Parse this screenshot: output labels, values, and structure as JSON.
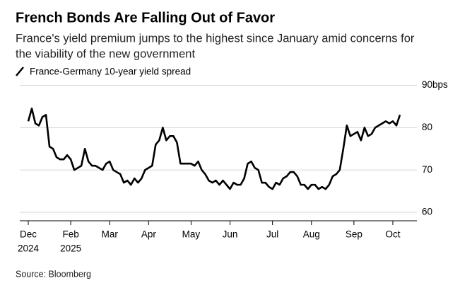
{
  "chart_data": {
    "type": "line",
    "title": "French Bonds Are Falling Out of Favor",
    "subtitle": [
      "France's yield premium jumps to the highest since January amid concerns for",
      "the viability of the new government"
    ],
    "source": "Source: Bloomberg",
    "x": [
      "2024-12",
      "2024-12",
      "2024-12",
      "2024-12",
      "2024-12",
      "2024-12",
      "2025-01",
      "2025-01",
      "2025-01",
      "2025-01",
      "2025-01",
      "2025-01",
      "2025-02",
      "2025-02",
      "2025-02",
      "2025-02",
      "2025-02",
      "2025-02",
      "2025-02",
      "2025-02",
      "2025-02",
      "2025-02",
      "2025-02",
      "2025-03",
      "2025-03",
      "2025-03",
      "2025-03",
      "2025-03",
      "2025-03",
      "2025-03",
      "2025-03",
      "2025-03",
      "2025-03",
      "2025-03",
      "2025-04",
      "2025-04",
      "2025-04",
      "2025-04",
      "2025-04",
      "2025-04",
      "2025-04",
      "2025-04",
      "2025-04",
      "2025-04",
      "2025-04",
      "2025-04",
      "2025-05",
      "2025-05",
      "2025-05",
      "2025-05",
      "2025-05",
      "2025-05",
      "2025-05",
      "2025-05",
      "2025-05",
      "2025-05",
      "2025-05",
      "2025-06",
      "2025-06",
      "2025-06",
      "2025-06",
      "2025-06",
      "2025-06",
      "2025-06",
      "2025-06",
      "2025-06",
      "2025-06",
      "2025-06",
      "2025-06",
      "2025-07",
      "2025-07",
      "2025-07",
      "2025-07",
      "2025-07",
      "2025-07",
      "2025-07",
      "2025-07",
      "2025-07",
      "2025-07",
      "2025-07",
      "2025-08",
      "2025-08",
      "2025-08",
      "2025-08",
      "2025-08",
      "2025-08",
      "2025-08",
      "2025-08",
      "2025-08",
      "2025-08",
      "2025-08",
      "2025-08",
      "2025-09",
      "2025-09",
      "2025-09",
      "2025-09",
      "2025-09",
      "2025-09",
      "2025-09",
      "2025-09",
      "2025-09",
      "2025-09",
      "2025-09",
      "2025-10",
      "2025-10",
      "2025-10"
    ],
    "series": [
      {
        "name": "France-Germany 10-year yield spread",
        "color": "#000000",
        "values": [
          81.5,
          84.5,
          81,
          80.5,
          82.5,
          83,
          75.5,
          75,
          73,
          72.5,
          72.5,
          73.5,
          72.5,
          70,
          70.5,
          71,
          75,
          72,
          71,
          71,
          70.5,
          70,
          71.5,
          72,
          70,
          69.5,
          69,
          67,
          67.5,
          66.5,
          68,
          67,
          68,
          70,
          70.5,
          71,
          76,
          77,
          80,
          77,
          78,
          78,
          76.5,
          71.5,
          71.5,
          71.5,
          71.5,
          71,
          72,
          70,
          69,
          67.5,
          67,
          67.5,
          66.5,
          67.5,
          66.5,
          65.5,
          67,
          66.5,
          66.5,
          68,
          71.5,
          72,
          70.5,
          70,
          67,
          67,
          66,
          65.5,
          67,
          66.5,
          68,
          68.5,
          69.5,
          69.5,
          68.5,
          66.5,
          66.5,
          65.5,
          66.5,
          66.5,
          65.5,
          66,
          65.5,
          66.5,
          68.5,
          69,
          70,
          75,
          80.5,
          78,
          78.5,
          79,
          77,
          80,
          78,
          78.5,
          80,
          80.5,
          81,
          81.5,
          81,
          81.5,
          80.5,
          83
        ]
      }
    ],
    "xticks": [
      {
        "value": "2024-12",
        "label": "Dec",
        "year": "2024"
      },
      {
        "value": "2025-02",
        "label": "Feb",
        "year": "2025"
      },
      {
        "value": "2025-03",
        "label": "Mar"
      },
      {
        "value": "2025-04",
        "label": "Apr"
      },
      {
        "value": "2025-05",
        "label": "May"
      },
      {
        "value": "2025-06",
        "label": "Jun"
      },
      {
        "value": "2025-07",
        "label": "Jul"
      },
      {
        "value": "2025-08",
        "label": "Aug"
      },
      {
        "value": "2025-09",
        "label": "Sep"
      },
      {
        "value": "2025-10",
        "label": "Oct"
      }
    ],
    "ylim": [
      58,
      90
    ],
    "yticks": [
      60,
      70,
      80,
      {
        "value": 90,
        "label": "90bps"
      }
    ],
    "grid": true
  }
}
